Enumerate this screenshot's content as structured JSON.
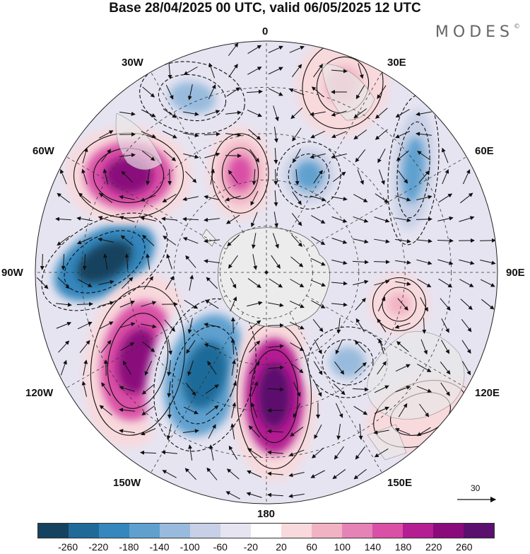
{
  "title": "Base 28/04/2025 00 UTC, valid 06/05/2025 12 UTC",
  "brand": "MODES",
  "brand_mark": "©",
  "lon_labels": {
    "top": "0",
    "ne": "30E",
    "ene": "60E",
    "east": "90E",
    "ese": "120E",
    "se": "150E",
    "bottom": "180",
    "sw": "150W",
    "wsw": "120W",
    "west": "90W",
    "wnw": "60W",
    "nw": "30W"
  },
  "reference_vector": {
    "label": "30"
  },
  "colorbar": {
    "colors": [
      "#15425e",
      "#1f6a99",
      "#3587bd",
      "#5fa0cf",
      "#98bbdd",
      "#c7d0e6",
      "#e6e4f1",
      "#ffffff",
      "#f8d9dc",
      "#f1b3c4",
      "#e683b6",
      "#d950a6",
      "#b41e92",
      "#8a0a7c",
      "#5b0f6e"
    ],
    "ticks": [
      "-260",
      "-220",
      "-180",
      "-140",
      "-100",
      "-60",
      "-20",
      "20",
      "60",
      "100",
      "140",
      "180",
      "220",
      "260"
    ]
  },
  "anomalies": [
    {
      "name": "low-90w",
      "value": -240,
      "colorIndex": 0
    },
    {
      "name": "high-60w",
      "value": 230,
      "colorIndex": 13
    },
    {
      "name": "high-120w",
      "value": 250,
      "colorIndex": 13
    },
    {
      "name": "low-150w",
      "value": -230,
      "colorIndex": 1
    },
    {
      "name": "high-160w",
      "value": 260,
      "colorIndex": 14
    },
    {
      "name": "low-30w",
      "value": -100,
      "colorIndex": 4
    },
    {
      "name": "high-20w",
      "value": 160,
      "colorIndex": 11
    },
    {
      "name": "low-30e",
      "value": -140,
      "colorIndex": 3
    },
    {
      "name": "high-10e",
      "value": 90,
      "colorIndex": 9
    },
    {
      "name": "low-50e",
      "value": -160,
      "colorIndex": 3
    },
    {
      "name": "high-100e",
      "value": 90,
      "colorIndex": 9
    },
    {
      "name": "low-130e",
      "value": -100,
      "colorIndex": 4
    },
    {
      "name": "high-120e",
      "value": 60,
      "colorIndex": 8
    }
  ]
}
